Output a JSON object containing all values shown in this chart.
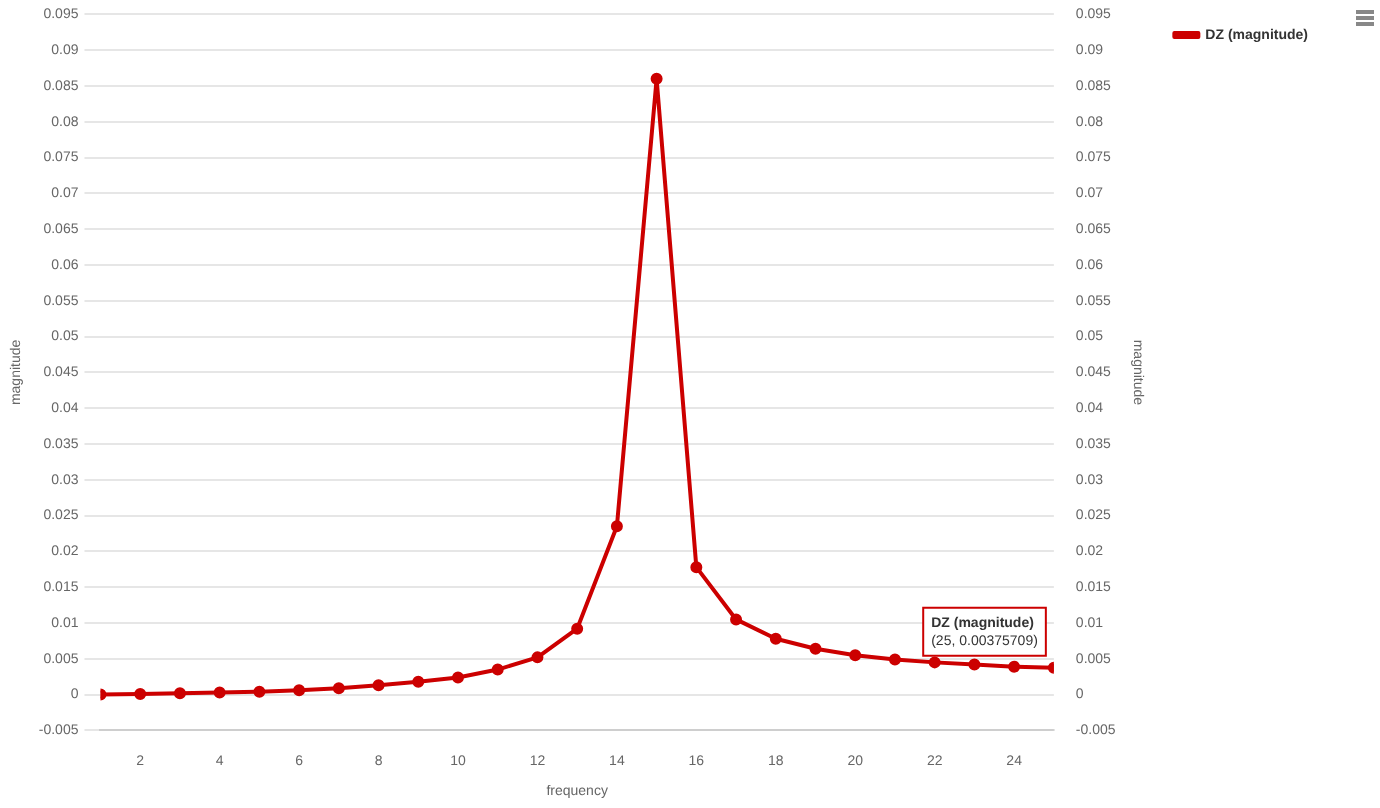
{
  "chart_data": {
    "type": "line",
    "xlabel": "frequency",
    "ylabel": "magnitude",
    "y2label": "magnitude",
    "x": [
      1,
      2,
      3,
      4,
      5,
      6,
      7,
      8,
      9,
      10,
      11,
      12,
      13,
      14,
      15,
      16,
      17,
      18,
      19,
      20,
      21,
      22,
      23,
      24,
      25
    ],
    "series": [
      {
        "name": "DZ (magnitude)",
        "color": "#cc0000",
        "values": [
          0,
          0.0001,
          0.0002,
          0.0003,
          0.0004,
          0.0006,
          0.0009,
          0.0013,
          0.0018,
          0.0024,
          0.0035,
          0.0052,
          0.0092,
          0.0235,
          0.086,
          0.0178,
          0.0105,
          0.0078,
          0.0064,
          0.0055,
          0.0049,
          0.0045,
          0.0042,
          0.0039,
          0.00375709
        ]
      }
    ],
    "xlim": [
      1,
      25
    ],
    "xticks": [
      2,
      4,
      6,
      8,
      10,
      12,
      14,
      16,
      18,
      20,
      22,
      24
    ],
    "ylim": [
      -0.005,
      0.095
    ],
    "yticks": [
      -0.005,
      0,
      0.005,
      0.01,
      0.015,
      0.02,
      0.025,
      0.03,
      0.035,
      0.04,
      0.045,
      0.05,
      0.055,
      0.06,
      0.065,
      0.07,
      0.075,
      0.08,
      0.085,
      0.09,
      0.095
    ],
    "y2lim": [
      -0.005,
      0.095
    ],
    "y2ticks": [
      -0.005,
      0,
      0.005,
      0.01,
      0.015,
      0.02,
      0.025,
      0.03,
      0.035,
      0.04,
      0.045,
      0.05,
      0.055,
      0.06,
      0.065,
      0.07,
      0.075,
      0.08,
      0.085,
      0.09,
      0.095
    ],
    "annotations": [
      {
        "text": "DZ (magnitude)\n(25, 0.00375709)",
        "x": 25,
        "y": 0.00375709
      }
    ],
    "grid": "y",
    "legend": "top right",
    "marker": "circle",
    "line_style": "solid"
  }
}
